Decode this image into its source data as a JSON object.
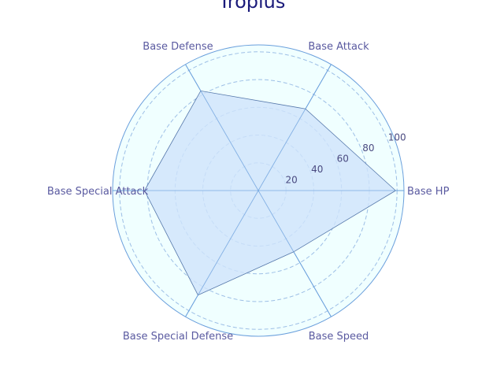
{
  "chart_data": {
    "type": "radar",
    "title": "Tropius",
    "categories": [
      "Base HP",
      "Base Attack",
      "Base Defense",
      "Base Special Attack",
      "Base Special Defense",
      "Base Speed"
    ],
    "series": [
      {
        "values": [
          99,
          68,
          83,
          82,
          87,
          51
        ]
      }
    ],
    "r_range": [
      0,
      105
    ],
    "r_ticks": [
      20,
      40,
      60,
      80,
      100
    ],
    "grid": true,
    "colors": {
      "background": "#f0ffff",
      "outline": "#6a9fdc",
      "grid": "#9dbfe6",
      "fill": "#cfe3fb",
      "stroke": "#5577aa",
      "label": "#5a5aa0",
      "tick_label": "#4a4a80",
      "title": "#1a1a7a"
    }
  }
}
